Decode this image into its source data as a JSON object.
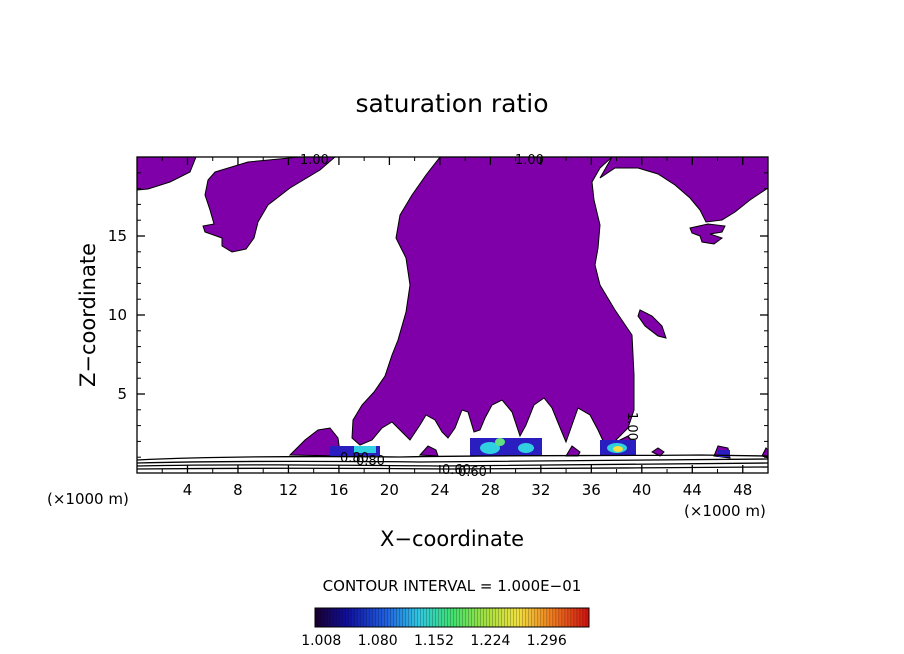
{
  "chart_data": {
    "type": "heatmap",
    "title": "saturation ratio",
    "xlabel": "X−coordinate",
    "ylabel": "Z−coordinate",
    "x_unit_left": "(×1000 m)",
    "x_unit_right": "(×1000 m)",
    "xlim": [
      0,
      50
    ],
    "ylim": [
      0,
      20
    ],
    "x_ticks": [
      "4",
      "8",
      "12",
      "16",
      "20",
      "24",
      "28",
      "32",
      "36",
      "40",
      "44",
      "48"
    ],
    "y_ticks": [
      "5",
      "10",
      "15"
    ],
    "contour_interval_text": "CONTOUR INTERVAL = 1.000E−01",
    "colorbar_labels": [
      "1.008",
      "1.080",
      "1.152",
      "1.224",
      "1.296"
    ],
    "colorbar_range": [
      1.0,
      1.35
    ],
    "contour_line_labels": [
      "1.00",
      "1.00",
      "1.00",
      "0.80",
      "0.80",
      "0.60",
      "0.60"
    ],
    "fill_color": "#7f00a8",
    "grid": false
  }
}
